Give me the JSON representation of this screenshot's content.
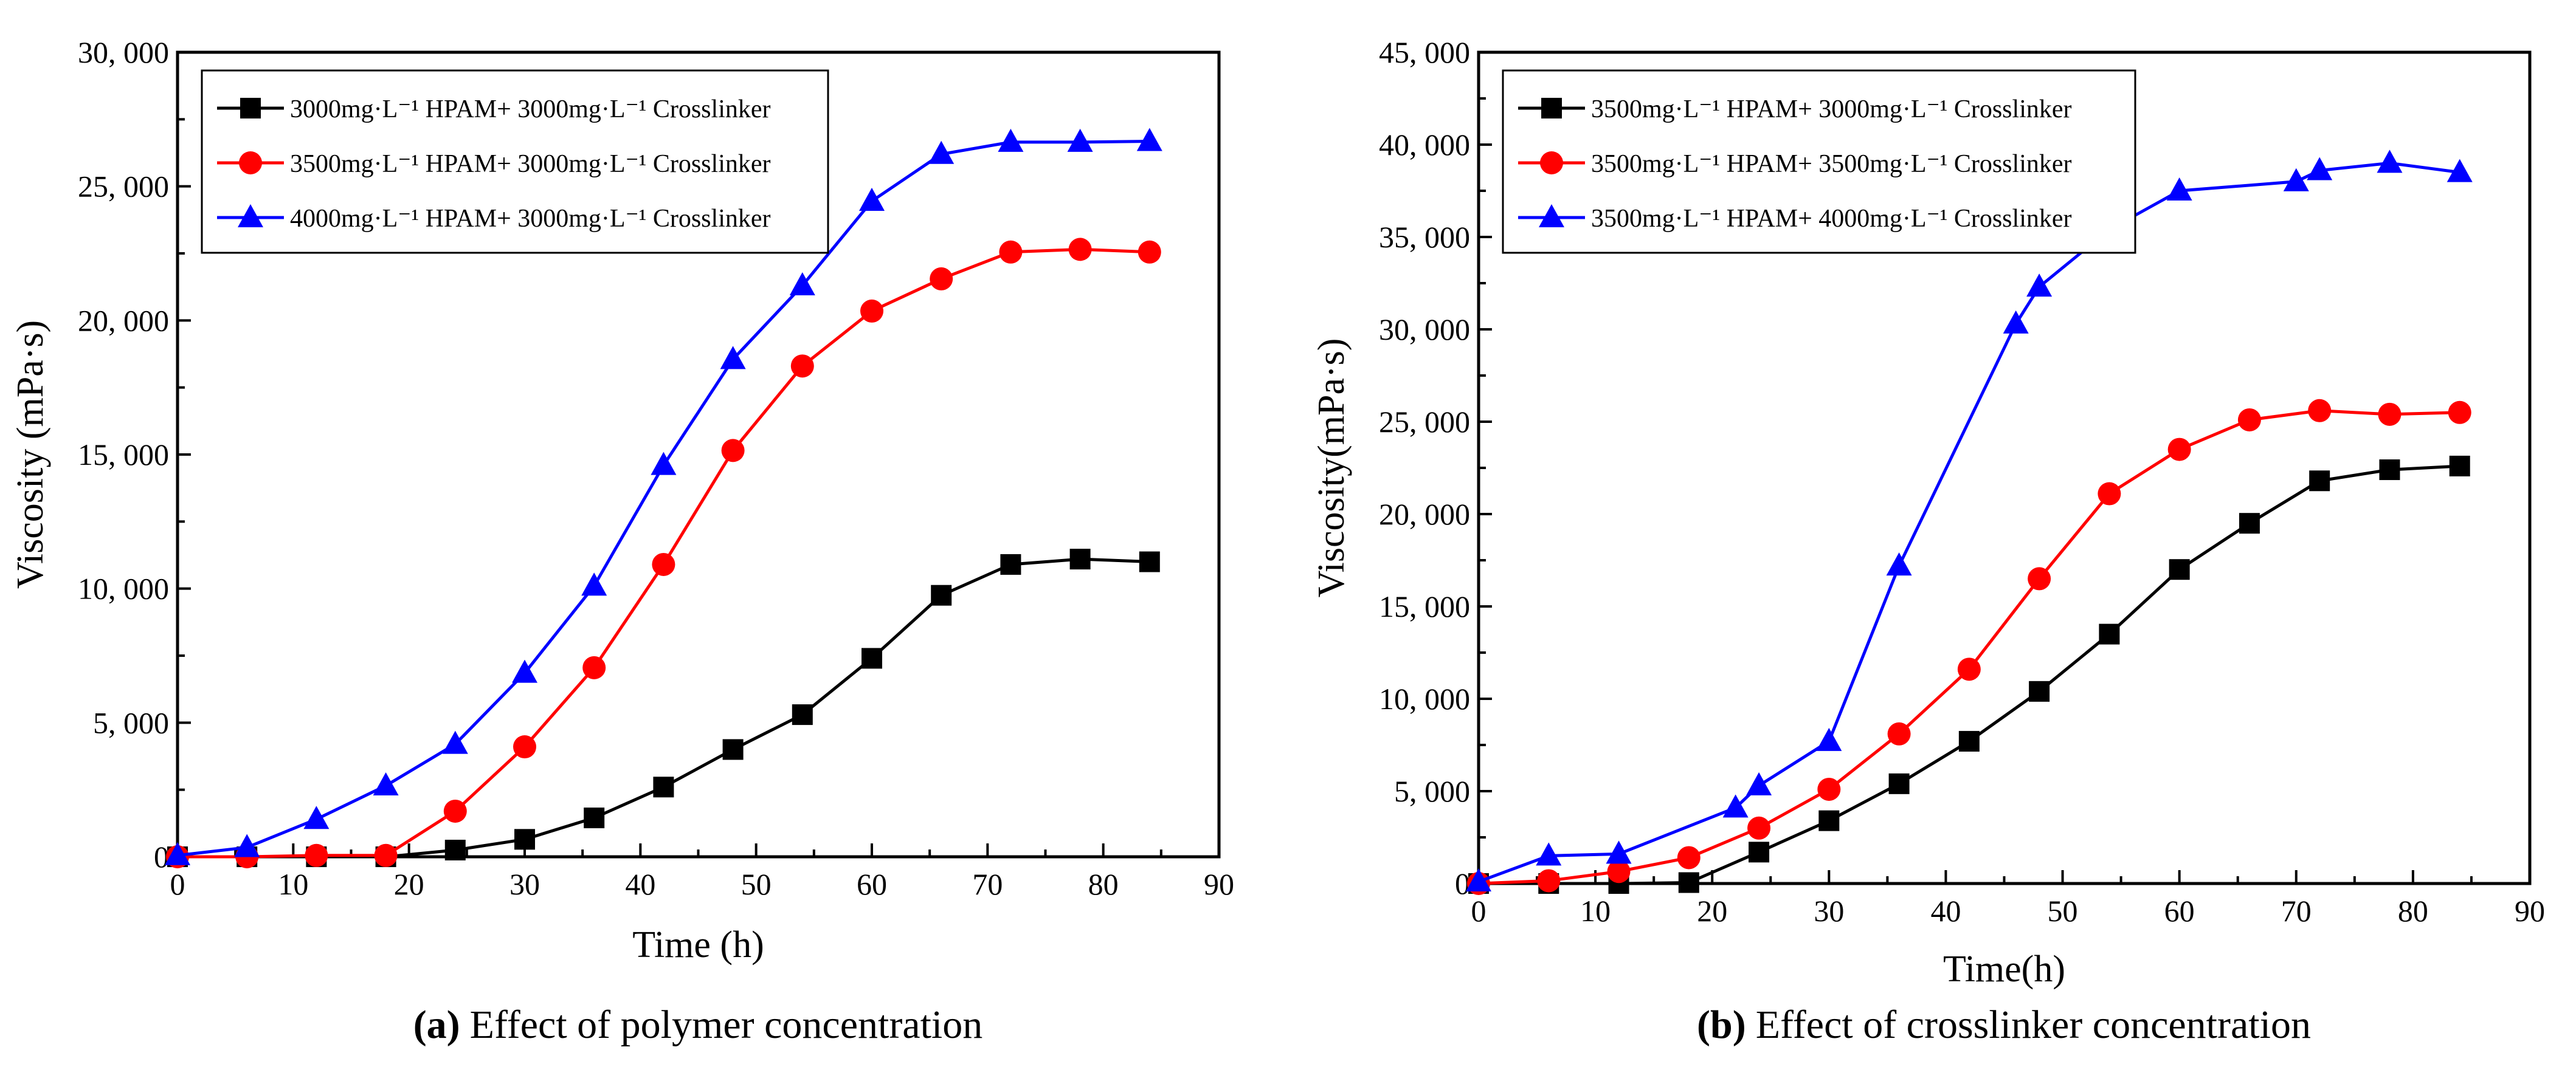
{
  "chart_data": [
    {
      "type": "line",
      "caption_label": "(a)",
      "caption": "Effect of polymer concentration",
      "xlabel": "Time (h)",
      "ylabel": "Viscosity (mPa·s)",
      "xlim": [
        0,
        90
      ],
      "ylim": [
        0,
        30000
      ],
      "xticks": [
        "0",
        "10",
        "20",
        "30",
        "40",
        "50",
        "60",
        "70",
        "80",
        "90"
      ],
      "yticks": [
        "0",
        "5, 000",
        "10, 000",
        "15, 000",
        "20, 000",
        "25, 000",
        "30, 000"
      ],
      "legend_position": "top-left",
      "series": [
        {
          "name": "3000mg·L⁻¹ HPAM+ 3000mg·L⁻¹ Crosslinker",
          "color": "#000000",
          "marker": "square",
          "x": [
            0,
            6,
            12,
            18,
            24,
            30,
            36,
            42,
            48,
            54,
            60,
            66,
            72,
            78,
            84
          ],
          "y": [
            0,
            0,
            0,
            0,
            250,
            650,
            1450,
            2600,
            4000,
            5300,
            7400,
            9750,
            10900,
            11100,
            11000
          ]
        },
        {
          "name": "3500mg·L⁻¹ HPAM+ 3000mg·L⁻¹ Crosslinker",
          "color": "#ff0000",
          "marker": "circle",
          "x": [
            0,
            6,
            12,
            18,
            24,
            30,
            36,
            42,
            48,
            54,
            60,
            66,
            72,
            78,
            84
          ],
          "y": [
            0,
            0,
            50,
            50,
            1700,
            4100,
            7050,
            10900,
            15150,
            18300,
            20350,
            21550,
            22550,
            22650,
            22550
          ]
        },
        {
          "name": "4000mg·L⁻¹ HPAM+ 3000mg·L⁻¹ Crosslinker",
          "color": "#0000ff",
          "marker": "triangle",
          "x": [
            0,
            6,
            12,
            18,
            24,
            30,
            36,
            42,
            48,
            54,
            60,
            66,
            72,
            78,
            84
          ],
          "y": [
            50,
            350,
            1400,
            2650,
            4200,
            6850,
            10100,
            14600,
            18550,
            21300,
            24450,
            26200,
            26650,
            26650,
            26680
          ]
        }
      ]
    },
    {
      "type": "line",
      "caption_label": "(b)",
      "caption": "Effect of crosslinker concentration",
      "xlabel": "Time(h)",
      "ylabel": "Viscosity(mPa·s)",
      "xlim": [
        0,
        90
      ],
      "ylim": [
        0,
        45000
      ],
      "xticks": [
        "0",
        "10",
        "20",
        "30",
        "40",
        "50",
        "60",
        "70",
        "80",
        "90"
      ],
      "yticks": [
        "0",
        "5, 000",
        "10, 000",
        "15, 000",
        "20, 000",
        "25, 000",
        "30, 000",
        "35, 000",
        "40, 000",
        "45, 000"
      ],
      "legend_position": "top-left",
      "series": [
        {
          "name": "3500mg·L⁻¹ HPAM+ 3000mg·L⁻¹ Crosslinker",
          "color": "#000000",
          "marker": "square",
          "x": [
            0,
            6,
            12,
            18,
            24,
            30,
            36,
            42,
            48,
            54,
            60,
            66,
            72,
            78,
            84
          ],
          "y": [
            0,
            0,
            0,
            50,
            1700,
            3400,
            5400,
            7700,
            10400,
            13500,
            17000,
            19500,
            21800,
            22400,
            22600
          ]
        },
        {
          "name": "3500mg·L⁻¹ HPAM+ 3500mg·L⁻¹ Crosslinker",
          "color": "#ff0000",
          "marker": "circle",
          "x": [
            0,
            6,
            12,
            18,
            24,
            30,
            36,
            42,
            48,
            54,
            60,
            66,
            72,
            78,
            84
          ],
          "y": [
            0,
            150,
            650,
            1400,
            3000,
            5100,
            8100,
            11600,
            16500,
            21100,
            23500,
            25100,
            25600,
            25400,
            25500
          ]
        },
        {
          "name": "3500mg·L⁻¹ HPAM+ 4000mg·L⁻¹ Crosslinker",
          "color": "#0000ff",
          "marker": "triangle",
          "x": [
            0,
            6,
            12,
            22,
            24,
            30,
            36,
            46,
            48,
            54,
            60,
            70,
            72,
            78,
            84
          ],
          "y": [
            100,
            1500,
            1600,
            4100,
            5300,
            7700,
            17200,
            30300,
            32300,
            35400,
            37500,
            38000,
            38600,
            39000,
            38500
          ]
        }
      ]
    }
  ]
}
